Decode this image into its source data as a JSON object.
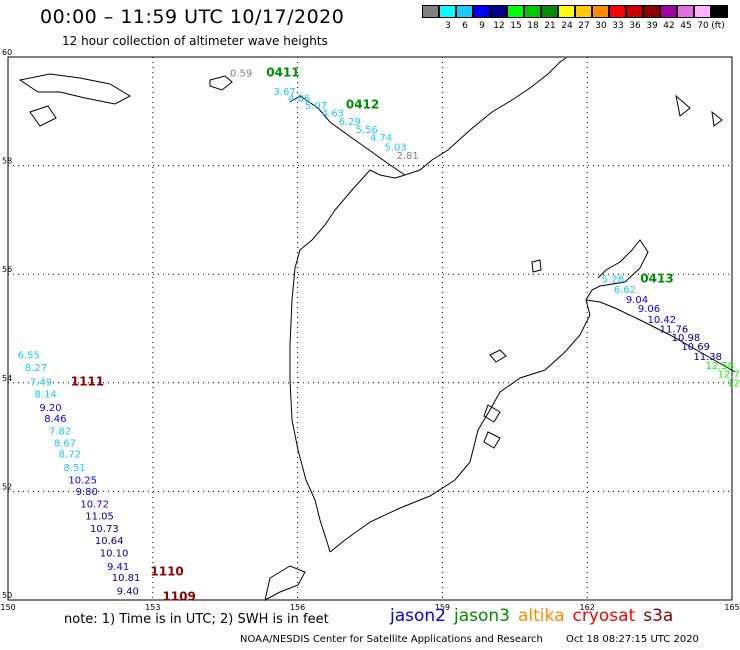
{
  "header": {
    "title": "00:00 – 11:59 UTC 10/17/2020",
    "subtitle": "12 hour collection of altimeter wave heights"
  },
  "scale": {
    "unit": "(ft)",
    "items": [
      {
        "label": "",
        "color": "#808080"
      },
      {
        "label": "3",
        "color": "#00ffff"
      },
      {
        "label": "6",
        "color": "#1ec8ff"
      },
      {
        "label": "9",
        "color": "#0000ff"
      },
      {
        "label": "12",
        "color": "#00008b"
      },
      {
        "label": "15",
        "color": "#00ff00"
      },
      {
        "label": "18",
        "color": "#00c800"
      },
      {
        "label": "21",
        "color": "#008c00"
      },
      {
        "label": "24",
        "color": "#ffff00"
      },
      {
        "label": "27",
        "color": "#ffc800"
      },
      {
        "label": "30",
        "color": "#ff8c00"
      },
      {
        "label": "33",
        "color": "#ff0000"
      },
      {
        "label": "36",
        "color": "#c80000"
      },
      {
        "label": "39",
        "color": "#8b0000"
      },
      {
        "label": "42",
        "color": "#a000a0"
      },
      {
        "label": "45",
        "color": "#e070e0"
      },
      {
        "label": "70",
        "color": "#ffb0ff"
      },
      {
        "label": "",
        "color": "#000000"
      }
    ]
  },
  "map": {
    "lon_labels": [
      "150",
      "153",
      "156",
      "159",
      "162",
      "165"
    ],
    "lat_labels": [
      "60",
      "58",
      "56",
      "54",
      "52",
      "50"
    ],
    "lon_range": [
      150,
      165
    ],
    "lat_range": [
      50,
      60
    ]
  },
  "passes": [
    {
      "id": "0411",
      "color": "#008c00",
      "lat": 59.64,
      "lon": 155.35
    },
    {
      "id": "0412",
      "color": "#008c00",
      "lat": 59.05,
      "lon": 157.0
    },
    {
      "id": "0413",
      "color": "#008c00",
      "lat": 55.85,
      "lon": 163.1
    },
    {
      "id": "1111",
      "color": "#8b0000",
      "lat": 53.95,
      "lon": 151.3
    },
    {
      "id": "1110",
      "color": "#8b0000",
      "lat": 50.45,
      "lon": 152.95
    },
    {
      "id": "1109",
      "color": "#8b0000",
      "lat": 49.99,
      "lon": 153.2
    }
  ],
  "wave_heights": [
    {
      "text": "0.59",
      "color": "#808080",
      "lat": 59.64,
      "lon": 154.6
    },
    {
      "text": "3.67",
      "color": "#1ec8ff",
      "lat": 59.3,
      "lon": 155.5
    },
    {
      "text": "4.86",
      "color": "#1ec8ff",
      "lat": 59.18,
      "lon": 155.8
    },
    {
      "text": "5.07",
      "color": "#1ec8ff",
      "lat": 59.04,
      "lon": 156.15
    },
    {
      "text": "4.63",
      "color": "#1ec8ff",
      "lat": 58.9,
      "lon": 156.5
    },
    {
      "text": "6.29",
      "color": "#1ec8ff",
      "lat": 58.75,
      "lon": 156.85
    },
    {
      "text": "5.56",
      "color": "#1ec8ff",
      "lat": 58.6,
      "lon": 157.2
    },
    {
      "text": "4.74",
      "color": "#1ec8ff",
      "lat": 58.45,
      "lon": 157.5
    },
    {
      "text": "5.03",
      "color": "#1ec8ff",
      "lat": 58.28,
      "lon": 157.8
    },
    {
      "text": "2.81",
      "color": "#808080",
      "lat": 58.12,
      "lon": 158.05
    },
    {
      "text": "5.28",
      "color": "#1ec8ff",
      "lat": 55.85,
      "lon": 162.3
    },
    {
      "text": "6.62",
      "color": "#1ec8ff",
      "lat": 55.65,
      "lon": 162.55
    },
    {
      "text": "9.04",
      "color": "#0000ff",
      "lat": 55.47,
      "lon": 162.8
    },
    {
      "text": "9.06",
      "color": "#0000ff",
      "lat": 55.3,
      "lon": 163.05
    },
    {
      "text": "10.42",
      "color": "#0000ff",
      "lat": 55.1,
      "lon": 163.25
    },
    {
      "text": "11.76",
      "color": "#00008b",
      "lat": 54.93,
      "lon": 163.5
    },
    {
      "text": "10.98",
      "color": "#00008b",
      "lat": 54.77,
      "lon": 163.75
    },
    {
      "text": "10.69",
      "color": "#00008b",
      "lat": 54.6,
      "lon": 163.95
    },
    {
      "text": "11.38",
      "color": "#00008b",
      "lat": 54.42,
      "lon": 164.2
    },
    {
      "text": "12.58",
      "color": "#00ff00",
      "lat": 54.25,
      "lon": 164.45
    },
    {
      "text": "12.7",
      "color": "#00ff00",
      "lat": 54.1,
      "lon": 164.7
    },
    {
      "text": "12",
      "color": "#00ff00",
      "lat": 53.93,
      "lon": 164.9
    },
    {
      "text": "6.55",
      "color": "#1ec8ff",
      "lat": 54.45,
      "lon": 150.2
    },
    {
      "text": "8.27",
      "color": "#1ec8ff",
      "lat": 54.22,
      "lon": 150.35
    },
    {
      "text": "7.49",
      "color": "#1ec8ff",
      "lat": 53.95,
      "lon": 150.45
    },
    {
      "text": "8.14",
      "color": "#1ec8ff",
      "lat": 53.73,
      "lon": 150.55
    },
    {
      "text": "9.20",
      "color": "#0000ff",
      "lat": 53.48,
      "lon": 150.65
    },
    {
      "text": "8.46",
      "color": "#0000ff",
      "lat": 53.28,
      "lon": 150.75
    },
    {
      "text": "7.82",
      "color": "#1ec8ff",
      "lat": 53.05,
      "lon": 150.85
    },
    {
      "text": "8.67",
      "color": "#1ec8ff",
      "lat": 52.83,
      "lon": 150.95
    },
    {
      "text": "8.72",
      "color": "#1ec8ff",
      "lat": 52.62,
      "lon": 151.05
    },
    {
      "text": "8.51",
      "color": "#1ec8ff",
      "lat": 52.38,
      "lon": 151.15
    },
    {
      "text": "10.25",
      "color": "#0000ff",
      "lat": 52.15,
      "lon": 151.25
    },
    {
      "text": "9.80",
      "color": "#0000ff",
      "lat": 51.93,
      "lon": 151.4
    },
    {
      "text": "10.72",
      "color": "#0000ff",
      "lat": 51.7,
      "lon": 151.5
    },
    {
      "text": "11.05",
      "color": "#00008b",
      "lat": 51.48,
      "lon": 151.6
    },
    {
      "text": "10.73",
      "color": "#00008b",
      "lat": 51.25,
      "lon": 151.7
    },
    {
      "text": "10.64",
      "color": "#00008b",
      "lat": 51.03,
      "lon": 151.8
    },
    {
      "text": "10.10",
      "color": "#00008b",
      "lat": 50.8,
      "lon": 151.9
    },
    {
      "text": "9.41",
      "color": "#0000ff",
      "lat": 50.55,
      "lon": 152.05
    },
    {
      "text": "10.81",
      "color": "#00008b",
      "lat": 50.35,
      "lon": 152.15
    },
    {
      "text": "9.40",
      "color": "#00008b",
      "lat": 50.1,
      "lon": 152.25
    }
  ],
  "footer": {
    "note": "note: 1) Time is in UTC; 2) SWH is in feet",
    "satellites": [
      {
        "name": "jason2",
        "color": "#0000ff"
      },
      {
        "name": "jason3",
        "color": "#008c00"
      },
      {
        "name": "altika",
        "color": "#ff8c00"
      },
      {
        "name": "cryosat",
        "color": "#ff0000"
      },
      {
        "name": "s3a",
        "color": "#8b0000"
      }
    ],
    "credit": "NOAA/NESDIS Center for Satellite Applications and Research",
    "timestamp": "Oct 18 08:27:15 UTC 2020"
  }
}
